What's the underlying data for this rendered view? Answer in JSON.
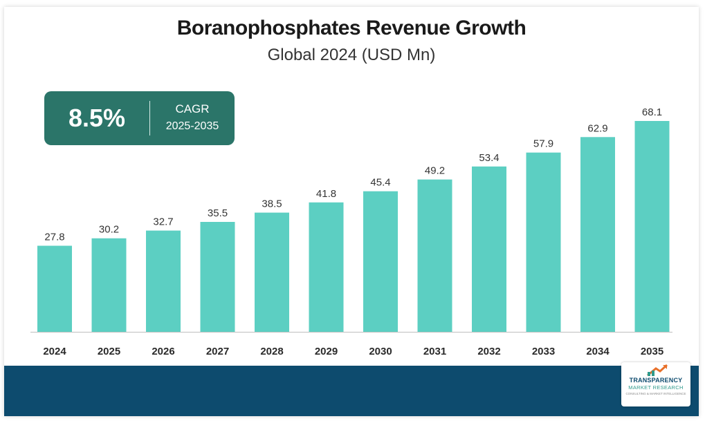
{
  "header": {
    "title": "Boranophosphates Revenue Growth",
    "subtitle": "Global 2024 (USD Mn)"
  },
  "cagr": {
    "value": "8.5%",
    "label": "CAGR",
    "period": "2025-2035"
  },
  "colors": {
    "bar": "#5ccfc2",
    "cagr_box": "#2b7569",
    "footer": "#0d4b6e",
    "axis": "#bfbfbf"
  },
  "logo": {
    "line1": "TRANSPARENCY",
    "line2": "MARKET RESEARCH",
    "line3": "CONSULTING & MARKET INTELLIGENCE"
  },
  "chart_data": {
    "type": "bar",
    "title": "Boranophosphates Revenue Growth",
    "subtitle": "Global 2024 (USD Mn)",
    "categories": [
      "2024",
      "2025",
      "2026",
      "2027",
      "2028",
      "2029",
      "2030",
      "2031",
      "2032",
      "2033",
      "2034",
      "2035"
    ],
    "values": [
      27.8,
      30.2,
      32.7,
      35.5,
      38.5,
      41.8,
      45.4,
      49.2,
      53.4,
      57.9,
      62.9,
      68.1
    ],
    "ylim": [
      0,
      68.1
    ],
    "grid": false,
    "data_labels": true
  }
}
